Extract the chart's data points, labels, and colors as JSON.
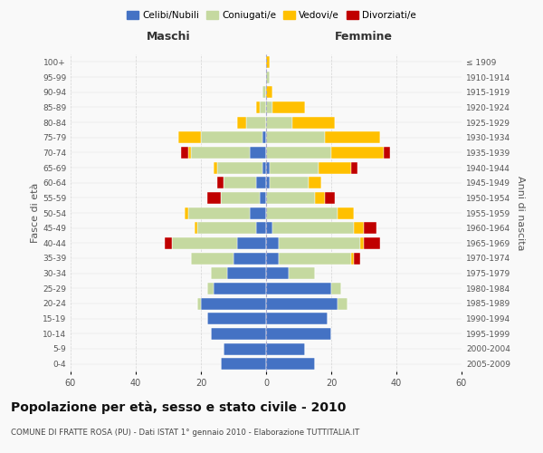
{
  "age_groups": [
    "0-4",
    "5-9",
    "10-14",
    "15-19",
    "20-24",
    "25-29",
    "30-34",
    "35-39",
    "40-44",
    "45-49",
    "50-54",
    "55-59",
    "60-64",
    "65-69",
    "70-74",
    "75-79",
    "80-84",
    "85-89",
    "90-94",
    "95-99",
    "100+"
  ],
  "birth_years": [
    "2005-2009",
    "2000-2004",
    "1995-1999",
    "1990-1994",
    "1985-1989",
    "1980-1984",
    "1975-1979",
    "1970-1974",
    "1965-1969",
    "1960-1964",
    "1955-1959",
    "1950-1954",
    "1945-1949",
    "1940-1944",
    "1935-1939",
    "1930-1934",
    "1925-1929",
    "1920-1924",
    "1915-1919",
    "1910-1914",
    "≤ 1909"
  ],
  "maschi": {
    "celibi": [
      14,
      13,
      17,
      18,
      20,
      16,
      12,
      10,
      9,
      3,
      5,
      2,
      3,
      1,
      5,
      1,
      0,
      0,
      0,
      0,
      0
    ],
    "coniugati": [
      0,
      0,
      0,
      0,
      1,
      2,
      5,
      13,
      20,
      18,
      19,
      12,
      10,
      14,
      18,
      19,
      6,
      2,
      1,
      0,
      0
    ],
    "vedovi": [
      0,
      0,
      0,
      0,
      0,
      0,
      0,
      0,
      0,
      1,
      1,
      0,
      0,
      1,
      1,
      7,
      3,
      1,
      0,
      0,
      0
    ],
    "divorziati": [
      0,
      0,
      0,
      0,
      0,
      0,
      0,
      0,
      2,
      0,
      0,
      4,
      2,
      0,
      2,
      0,
      0,
      0,
      0,
      0,
      0
    ]
  },
  "femmine": {
    "nubili": [
      15,
      12,
      20,
      19,
      22,
      20,
      7,
      4,
      4,
      2,
      0,
      0,
      1,
      1,
      0,
      0,
      0,
      0,
      0,
      0,
      0
    ],
    "coniugate": [
      0,
      0,
      0,
      0,
      3,
      3,
      8,
      22,
      25,
      25,
      22,
      15,
      12,
      15,
      20,
      18,
      8,
      2,
      0,
      1,
      0
    ],
    "vedove": [
      0,
      0,
      0,
      0,
      0,
      0,
      0,
      1,
      1,
      3,
      5,
      3,
      4,
      10,
      16,
      17,
      13,
      10,
      2,
      0,
      1
    ],
    "divorziate": [
      0,
      0,
      0,
      0,
      0,
      0,
      0,
      2,
      5,
      4,
      0,
      3,
      0,
      2,
      2,
      0,
      0,
      0,
      0,
      0,
      0
    ]
  },
  "colors": {
    "celibi_nubili": "#4472C4",
    "coniugati_e": "#c5d9a0",
    "vedovi_e": "#ffc000",
    "divorziati_e": "#c00000"
  },
  "xlim": 60,
  "title": "Popolazione per età, sesso e stato civile - 2010",
  "subtitle": "COMUNE DI FRATTE ROSA (PU) - Dati ISTAT 1° gennaio 2010 - Elaborazione TUTTITALIA.IT",
  "ylabel_left": "Fasce di età",
  "ylabel_right": "Anni di nascita",
  "xlabel_left": "Maschi",
  "xlabel_right": "Femmine",
  "background_color": "#f9f9f9",
  "grid_color": "#cccccc"
}
